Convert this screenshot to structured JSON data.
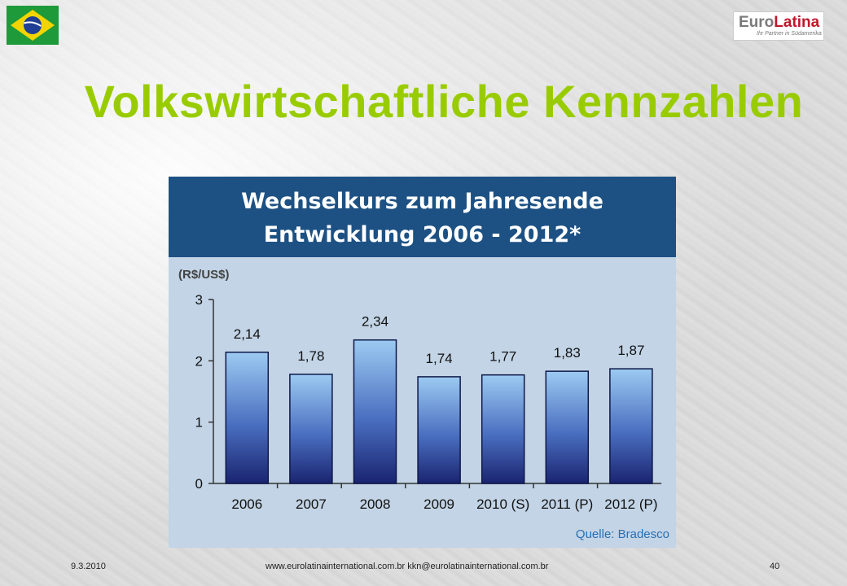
{
  "slide": {
    "title": "Volkswirtschaftliche Kennzahlen",
    "logo_euro": "Euro",
    "logo_latina": "Latina",
    "logo_tagline": "Ihr Partner in Südamerika"
  },
  "chart_data": {
    "type": "bar",
    "title_line1": "Wechselkurs zum Jahresende",
    "title_line2": "Entwicklung 2006 - 2012*",
    "ylabel": "(R$/US$)",
    "categories": [
      "2006",
      "2007",
      "2008",
      "2009",
      "2010 (S)",
      "2011 (P)",
      "2012 (P)"
    ],
    "values": [
      2.14,
      1.78,
      2.34,
      1.74,
      1.77,
      1.83,
      1.87
    ],
    "value_labels": [
      "2,14",
      "1,78",
      "2,34",
      "1,74",
      "1,77",
      "1,83",
      "1,87"
    ],
    "y_ticks": [
      "0",
      "1",
      "2",
      "3"
    ],
    "ylim": [
      0,
      3
    ],
    "source": "Quelle:  Bradesco",
    "grid": false,
    "bar_color_top": "#9ccaf2",
    "bar_color_bottom": "#1a2470"
  },
  "footer": {
    "date": "9.3.2010",
    "contact": "www.eurolatinainternational.com.br   kkn@eurolatinainternational.com.br",
    "page": "40"
  }
}
